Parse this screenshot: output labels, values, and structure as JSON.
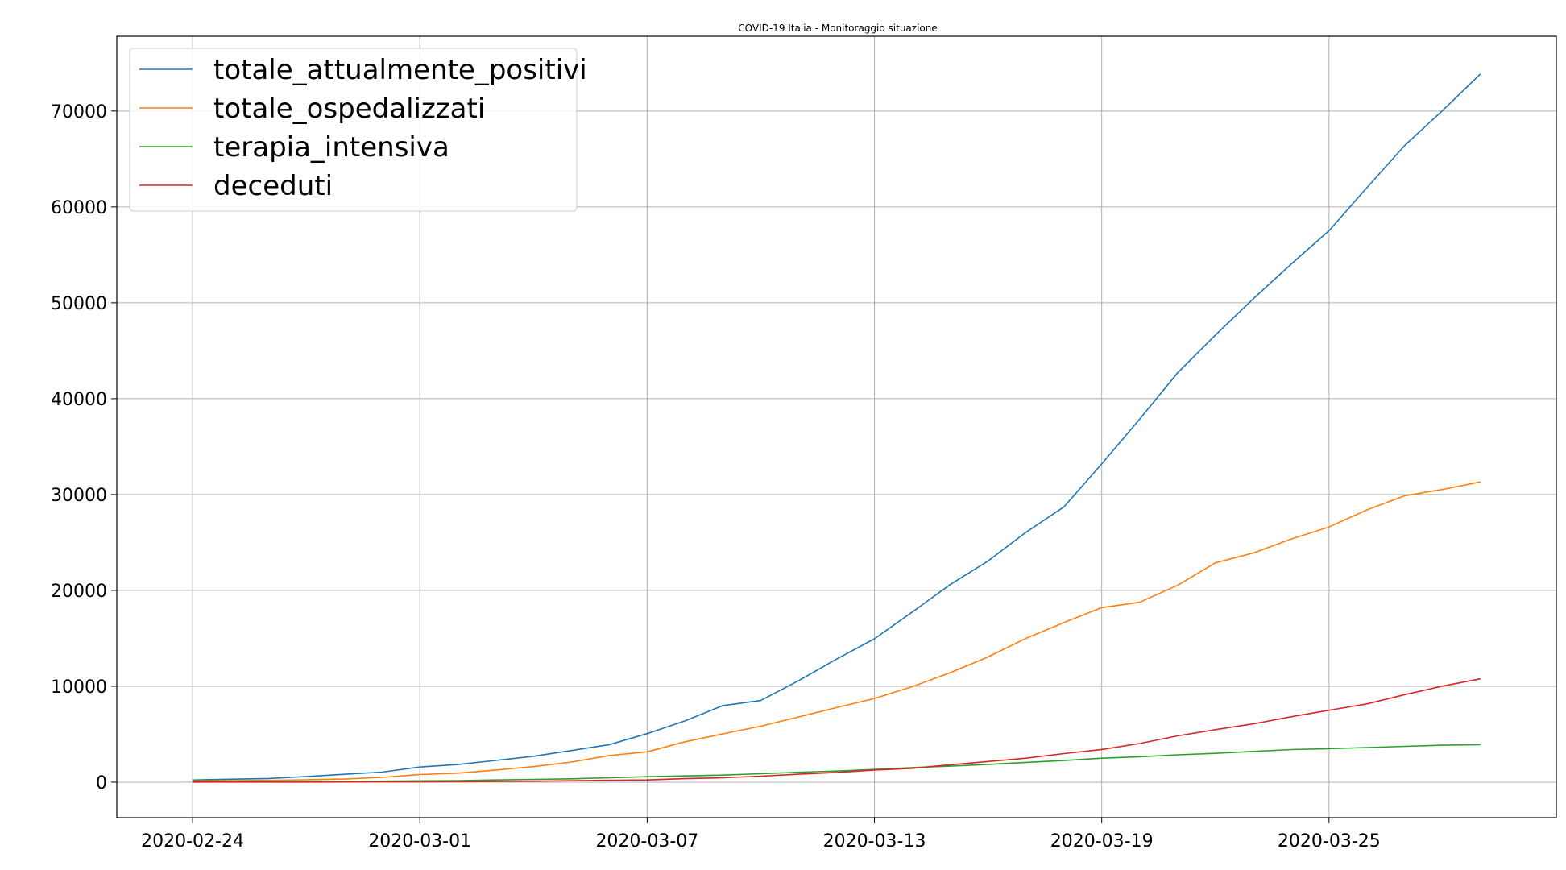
{
  "chart_data": {
    "type": "line",
    "title": "COVID-19 Italia - Monitoraggio situazione",
    "xlabel": "",
    "ylabel": "",
    "x": [
      "2020-02-24",
      "2020-02-25",
      "2020-02-26",
      "2020-02-27",
      "2020-02-28",
      "2020-02-29",
      "2020-03-01",
      "2020-03-02",
      "2020-03-03",
      "2020-03-04",
      "2020-03-05",
      "2020-03-06",
      "2020-03-07",
      "2020-03-08",
      "2020-03-09",
      "2020-03-10",
      "2020-03-11",
      "2020-03-12",
      "2020-03-13",
      "2020-03-14",
      "2020-03-15",
      "2020-03-16",
      "2020-03-17",
      "2020-03-18",
      "2020-03-19",
      "2020-03-20",
      "2020-03-21",
      "2020-03-22",
      "2020-03-23",
      "2020-03-24",
      "2020-03-25",
      "2020-03-26",
      "2020-03-27",
      "2020-03-28",
      "2020-03-29"
    ],
    "x_ticks": [
      "2020-02-24",
      "2020-03-01",
      "2020-03-07",
      "2020-03-13",
      "2020-03-19",
      "2020-03-25"
    ],
    "xlim": [
      "2020-02-22",
      "2020-03-31"
    ],
    "y_ticks": [
      0,
      10000,
      20000,
      30000,
      40000,
      50000,
      60000,
      70000
    ],
    "ylim": [
      -3700,
      77800
    ],
    "grid": true,
    "legend_position": "top-left",
    "series": [
      {
        "name": "totale_attualmente_positivi",
        "color": "#1f77b4",
        "values": [
          221,
          311,
          385,
          588,
          821,
          1049,
          1577,
          1835,
          2263,
          2706,
          3296,
          3916,
          5061,
          6387,
          7985,
          8514,
          10590,
          12839,
          14955,
          17750,
          20603,
          23073,
          26062,
          28710,
          33190,
          37860,
          42681,
          46638,
          50418,
          54030,
          57521,
          62013,
          66414,
          70065,
          73880
        ]
      },
      {
        "name": "totale_ospedalizzati",
        "color": "#ff7f0e",
        "values": [
          124,
          162,
          193,
          253,
          324,
          499,
          798,
          935,
          1263,
          1618,
          2099,
          2779,
          3161,
          4213,
          5038,
          5838,
          6806,
          7781,
          8728,
          9963,
          11417,
          13066,
          14994,
          16638,
          18207,
          18757,
          20524,
          22876,
          23900,
          25347,
          26612,
          28394,
          29871,
          30532,
          31319
        ]
      },
      {
        "name": "terapia_intensiva",
        "color": "#2ca02c",
        "values": [
          26,
          35,
          36,
          56,
          64,
          105,
          140,
          166,
          229,
          295,
          351,
          462,
          567,
          650,
          733,
          877,
          1028,
          1153,
          1328,
          1518,
          1672,
          1851,
          2060,
          2257,
          2498,
          2655,
          2857,
          3009,
          3204,
          3396,
          3489,
          3612,
          3732,
          3856,
          3906
        ]
      },
      {
        "name": "deceduti",
        "color": "#d62728",
        "values": [
          7,
          10,
          12,
          17,
          21,
          29,
          34,
          52,
          79,
          107,
          148,
          197,
          233,
          366,
          463,
          631,
          827,
          1016,
          1266,
          1441,
          1809,
          2158,
          2503,
          2978,
          3405,
          4032,
          4825,
          5476,
          6077,
          6820,
          7503,
          8165,
          9134,
          10023,
          10779
        ]
      }
    ]
  }
}
